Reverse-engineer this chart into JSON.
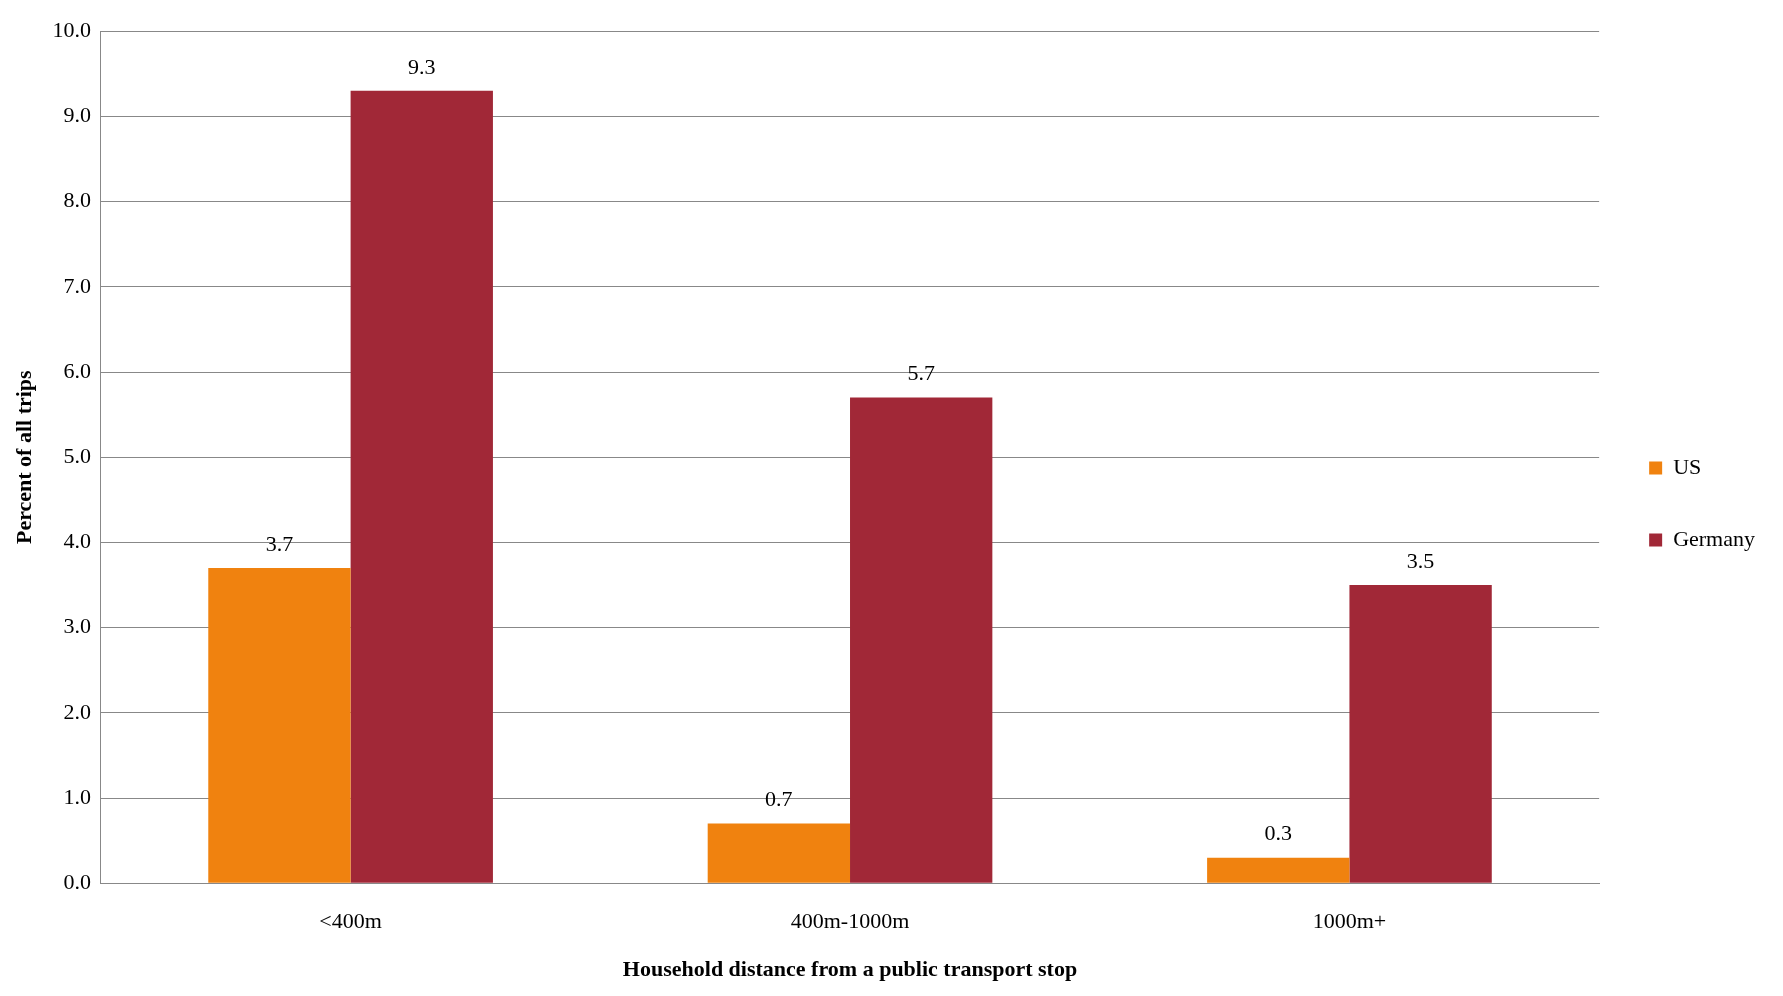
{
  "chart_data": {
    "type": "bar",
    "xlabel": "Household distance from a public transport stop",
    "ylabel": "Percent of all trips",
    "categories": [
      "<400m",
      "400m-1000m",
      "1000m+"
    ],
    "series": [
      {
        "name": "US",
        "color": "#f0820f",
        "values": [
          3.7,
          0.7,
          0.3
        ]
      },
      {
        "name": "Germany",
        "color": "#a12837",
        "values": [
          9.3,
          5.7,
          3.5
        ]
      }
    ],
    "ylim": [
      0,
      10
    ],
    "yticks": [
      {
        "value": 0,
        "label": "0.0"
      },
      {
        "value": 1,
        "label": "1.0"
      },
      {
        "value": 2,
        "label": "2.0"
      },
      {
        "value": 3,
        "label": "3.0"
      },
      {
        "value": 4,
        "label": "4.0"
      },
      {
        "value": 5,
        "label": "5.0"
      },
      {
        "value": 6,
        "label": "6.0"
      },
      {
        "value": 7,
        "label": "7.0"
      },
      {
        "value": 8,
        "label": "8.0"
      },
      {
        "value": 9,
        "label": "9.0"
      },
      {
        "value": 10,
        "label": "10.0"
      }
    ],
    "grid": "y",
    "legend": "right",
    "data_labels": true
  }
}
